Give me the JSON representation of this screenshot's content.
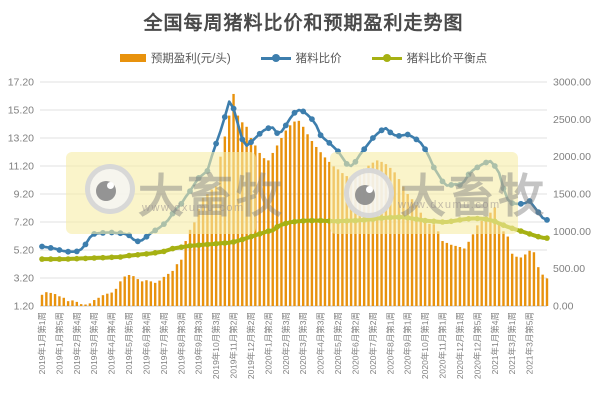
{
  "chart_data": {
    "type": "combo",
    "title": "全国每周猪料比价和预期盈利走势图",
    "legend_position": "top",
    "grid": true,
    "left_axis": {
      "min": 1.2,
      "max": 17.2,
      "step": 2.0,
      "labels": [
        "17.20",
        "15.20",
        "13.20",
        "11.20",
        "9.20",
        "7.20",
        "5.20",
        "3.20",
        "1.20"
      ]
    },
    "right_axis": {
      "min": 0,
      "max": 3000,
      "step": 500,
      "labels": [
        "3000.00",
        "2500.00",
        "2000.00",
        "1500.00",
        "1000.00",
        "500.00",
        "0.00"
      ]
    },
    "x_tick_interval": 4,
    "x_tick_labels": [
      "2019年1月第1周",
      "2019年1月第5周",
      "2019年2月第4周",
      "2019年3月第4周",
      "2019年4月第4周",
      "2019年5月第5周",
      "2019年6月第4周",
      "2019年7月第4周",
      "2019年8月第3周",
      "2019年9月第3周",
      "2019年10月第3周",
      "2019年11月第2周",
      "2019年12月第2周",
      "2020年1月第2周",
      "2020年2月第3周",
      "2020年3月第3周",
      "2020年4月第3周",
      "2020年5月第2周",
      "2020年6月第2周",
      "2020年7月第2周",
      "2020年8月第1周",
      "2020年9月第1周",
      "2020年10月第1周",
      "2020年11月第1周",
      "2020年12月第1周",
      "2020年12月第5周",
      "2021年1月第4周",
      "2021年3月第1周",
      "2021年3月第5周"
    ],
    "series": [
      {
        "name": "预期盈利(元/头)",
        "type": "bar",
        "axis": "right",
        "color": "#E8920D",
        "values": [
          150,
          185,
          175,
          160,
          130,
          110,
          65,
          75,
          55,
          25,
          20,
          35,
          80,
          110,
          145,
          165,
          180,
          230,
          330,
          395,
          415,
          400,
          360,
          330,
          345,
          330,
          310,
          340,
          390,
          430,
          470,
          560,
          620,
          870,
          1020,
          1120,
          1300,
          1450,
          1500,
          1560,
          1600,
          2000,
          2270,
          2550,
          2840,
          2550,
          2460,
          2400,
          2250,
          2150,
          2050,
          1980,
          1950,
          2050,
          2150,
          2250,
          2350,
          2420,
          2470,
          2480,
          2400,
          2300,
          2210,
          2130,
          2060,
          1990,
          1930,
          1870,
          1830,
          1780,
          1740,
          1700,
          1720,
          1780,
          1840,
          1880,
          1920,
          1950,
          1930,
          1900,
          1850,
          1790,
          1700,
          1600,
          1500,
          1430,
          1350,
          1250,
          1150,
          1100,
          1095,
          1000,
          870,
          845,
          820,
          805,
          790,
          770,
          860,
          960,
          1080,
          1140,
          1180,
          1250,
          1320,
          1110,
          1000,
          930,
          700,
          660,
          650,
          690,
          740,
          720,
          520,
          420,
          370
        ]
      },
      {
        "name": "猪料比价",
        "type": "line",
        "axis": "left",
        "color": "#3D7EAD",
        "values": [
          5.45,
          5.4,
          5.35,
          5.3,
          5.2,
          5.12,
          5.08,
          5.08,
          5.1,
          5.25,
          5.6,
          6.1,
          6.35,
          6.4,
          6.42,
          6.45,
          6.45,
          6.42,
          6.4,
          6.35,
          6.25,
          5.95,
          5.82,
          5.9,
          6.15,
          6.4,
          6.6,
          6.8,
          7.05,
          7.35,
          7.8,
          8.2,
          8.5,
          9.0,
          9.4,
          9.9,
          10.35,
          10.6,
          10.85,
          11.9,
          12.8,
          13.7,
          14.7,
          15.8,
          15.3,
          14.2,
          13.1,
          12.65,
          12.9,
          13.2,
          13.5,
          13.75,
          13.9,
          13.95,
          13.55,
          13.65,
          14.1,
          14.6,
          15.0,
          15.2,
          15.1,
          14.85,
          14.55,
          14.1,
          13.4,
          13.1,
          12.85,
          12.55,
          12.25,
          11.8,
          11.35,
          11.2,
          11.5,
          12.0,
          12.4,
          12.8,
          13.2,
          13.5,
          13.75,
          13.9,
          13.6,
          13.4,
          13.35,
          13.4,
          13.45,
          13.3,
          13.1,
          12.85,
          12.4,
          11.8,
          11.1,
          10.6,
          10.1,
          9.8,
          9.85,
          9.9,
          9.85,
          10.1,
          10.6,
          10.9,
          11.1,
          11.3,
          11.45,
          11.55,
          11.2,
          10.7,
          9.6,
          8.8,
          8.55,
          8.5,
          8.5,
          8.55,
          8.7,
          8.3,
          7.9,
          7.5,
          7.35
        ]
      },
      {
        "name": "猪料比价平衡点",
        "type": "line",
        "axis": "left",
        "color": "#A6B113",
        "values": [
          4.55,
          4.55,
          4.55,
          4.55,
          4.55,
          4.55,
          4.56,
          4.57,
          4.58,
          4.6,
          4.6,
          4.62,
          4.63,
          4.64,
          4.65,
          4.66,
          4.68,
          4.69,
          4.7,
          4.75,
          4.8,
          4.83,
          4.86,
          4.9,
          4.92,
          4.95,
          5.0,
          5.05,
          5.1,
          5.2,
          5.3,
          5.35,
          5.4,
          5.45,
          5.5,
          5.52,
          5.55,
          5.58,
          5.6,
          5.62,
          5.65,
          5.68,
          5.7,
          5.72,
          5.78,
          5.85,
          5.95,
          6.05,
          6.15,
          6.25,
          6.35,
          6.45,
          6.55,
          6.6,
          6.85,
          7.0,
          7.1,
          7.18,
          7.22,
          7.26,
          7.28,
          7.3,
          7.3,
          7.3,
          7.3,
          7.28,
          7.27,
          7.26,
          7.25,
          7.27,
          7.28,
          7.3,
          7.3,
          7.32,
          7.35,
          7.38,
          7.4,
          7.45,
          7.48,
          7.5,
          7.52,
          7.54,
          7.55,
          7.55,
          7.5,
          7.45,
          7.4,
          7.35,
          7.3,
          7.27,
          7.25,
          7.22,
          7.2,
          7.2,
          7.25,
          7.3,
          7.35,
          7.4,
          7.43,
          7.45,
          7.45,
          7.43,
          7.4,
          7.33,
          7.25,
          7.1,
          6.97,
          6.85,
          6.75,
          6.65,
          6.55,
          6.45,
          6.35,
          6.25,
          6.15,
          6.08,
          6.05
        ]
      }
    ],
    "watermark": {
      "brand": "大畜牧",
      "url": "www.dxumu.com"
    },
    "colors": {
      "grid": "#E0E0E0",
      "axis": "#C9C9C9",
      "axis_text": "#808080"
    }
  }
}
